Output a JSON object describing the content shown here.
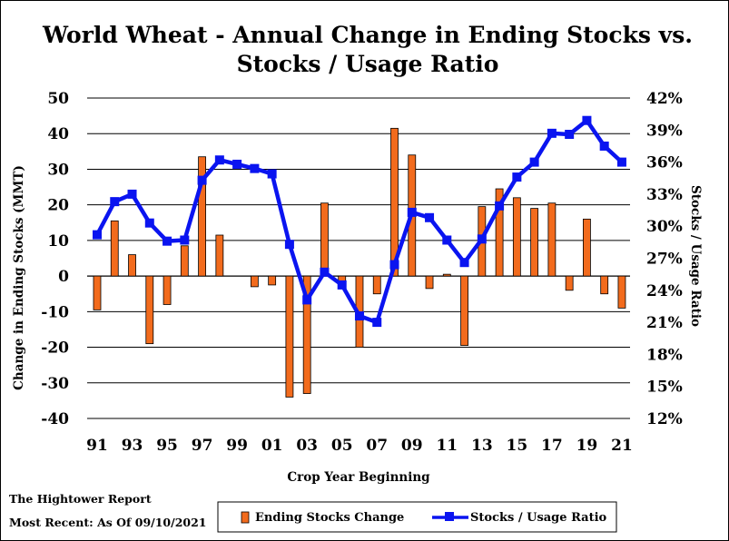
{
  "chart_data": {
    "type": "bar+line",
    "title_line1": "World Wheat - Annual Change in Ending Stocks vs.",
    "title_line2": "Stocks / Usage Ratio",
    "xlabel": "Crop Year Beginning",
    "ylabel_left": "Change in Ending Stocks (MMT)",
    "ylabel_right": "Stocks / Usage Ratio",
    "x": [
      1991,
      1992,
      1993,
      1994,
      1995,
      1996,
      1997,
      1998,
      1999,
      2000,
      2001,
      2002,
      2003,
      2004,
      2005,
      2006,
      2007,
      2008,
      2009,
      2010,
      2011,
      2012,
      2013,
      2014,
      2015,
      2016,
      2017,
      2018,
      2019,
      2020,
      2021
    ],
    "x_tick_labels": [
      "91",
      "93",
      "95",
      "97",
      "99",
      "01",
      "03",
      "05",
      "07",
      "09",
      "11",
      "13",
      "15",
      "17",
      "19",
      "21"
    ],
    "left_axis": {
      "min": -40,
      "max": 50,
      "step": 10,
      "tick_labels": [
        "50",
        "40",
        "30",
        "20",
        "10",
        "0",
        "-10",
        "-20",
        "-30",
        "-40"
      ]
    },
    "right_axis": {
      "min": 12,
      "max": 42,
      "step": 3,
      "tick_labels": [
        "42%",
        "39%",
        "36%",
        "33%",
        "30%",
        "27%",
        "24%",
        "21%",
        "18%",
        "15%",
        "12%"
      ]
    },
    "series": [
      {
        "name": "Ending Stocks Change",
        "type": "bar",
        "axis": "left",
        "color": "#F26B1D",
        "values": [
          -9.5,
          15.5,
          6,
          -19,
          -8,
          8.5,
          33.5,
          11.5,
          0,
          -3,
          -2.5,
          -34,
          -33,
          20.5,
          -3,
          -20,
          -5,
          41.5,
          34,
          -3.5,
          0.5,
          -19.5,
          19.5,
          24.5,
          22,
          19,
          20.5,
          -4,
          16,
          -5,
          -9
        ]
      },
      {
        "name": "Stocks / Usage Ratio",
        "type": "line",
        "axis": "right",
        "color": "#0A14F0",
        "values": [
          29.2,
          32.3,
          33.0,
          30.3,
          28.6,
          28.7,
          34.3,
          36.2,
          35.8,
          35.4,
          34.9,
          28.3,
          23.1,
          25.7,
          24.5,
          21.6,
          21.0,
          26.4,
          31.3,
          30.8,
          28.7,
          26.6,
          28.8,
          31.9,
          34.6,
          36.0,
          38.7,
          38.6,
          39.9,
          37.5,
          36.0
        ]
      }
    ],
    "grid": "horizontal",
    "legend_position": "bottom"
  },
  "footer": {
    "source": "The Hightower Report",
    "date_note": "Most Recent: As Of 09/10/2021"
  }
}
